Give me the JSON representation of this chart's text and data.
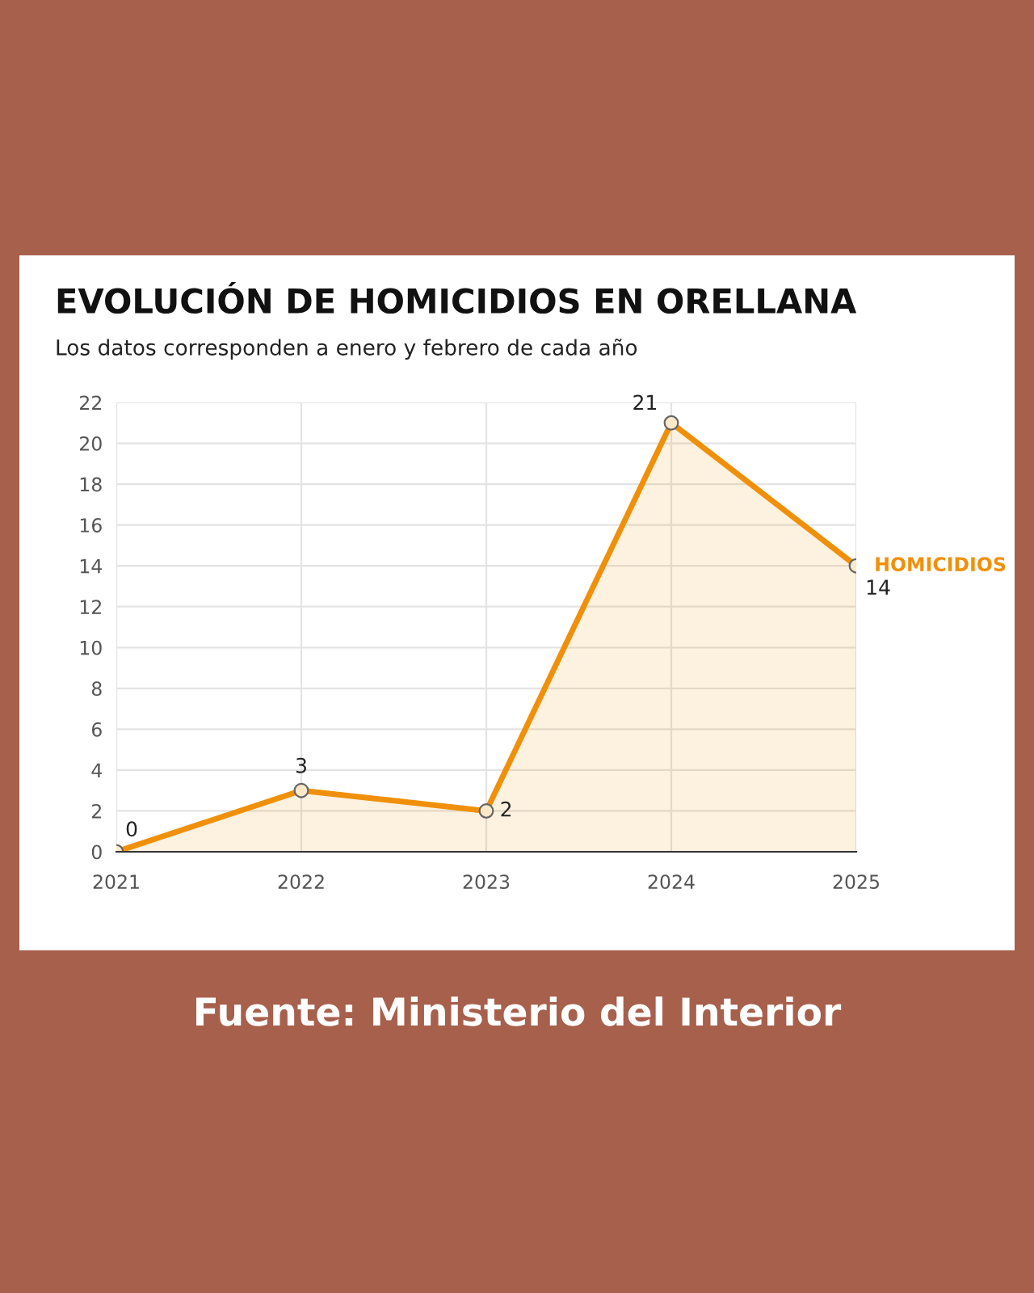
{
  "chart_data": {
    "type": "area",
    "title": "EVOLUCIÓN DE HOMICIDIOS EN ORELLANA",
    "subtitle": "Los datos corresponden a enero y febrero de cada año",
    "x": [
      2021,
      2022,
      2023,
      2024,
      2025
    ],
    "series": [
      {
        "name": "HOMICIDIOS",
        "color": "#f0900a",
        "values": [
          0,
          3,
          2,
          21,
          14
        ]
      }
    ],
    "xlim": [
      2021,
      2025
    ],
    "xticks": [
      2021,
      2022,
      2023,
      2024,
      2025
    ],
    "ylim": [
      0,
      22
    ],
    "yticks": [
      0,
      2,
      4,
      6,
      8,
      10,
      12,
      14,
      16,
      18,
      20,
      22
    ],
    "grid": true,
    "legend": false,
    "marker": "circle",
    "line_style": "solid",
    "data_labels": true,
    "annotations": [
      "Fuente: Ministerio del Interior"
    ]
  }
}
